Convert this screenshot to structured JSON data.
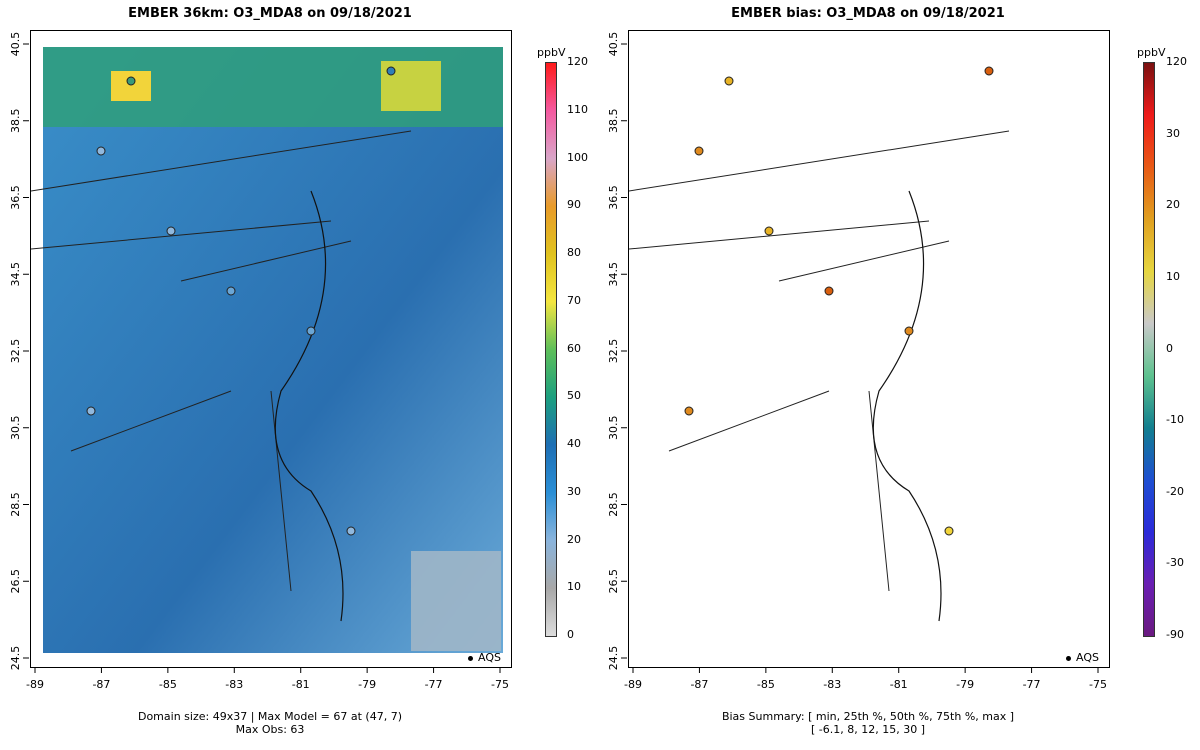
{
  "left_panel": {
    "title": "EMBER 36km: O3_MDA8 on 09/18/2021",
    "colorbar_unit": "ppbV",
    "colorbar_ticks": [
      "120",
      "110",
      "100",
      "90",
      "80",
      "70",
      "60",
      "50",
      "40",
      "30",
      "20",
      "10",
      "0"
    ],
    "legend_label": "AQS",
    "footer_line1": "Domain size: 49x37 | Max Model = 67 at (47, 7)",
    "footer_line2": "Max Obs: 63"
  },
  "right_panel": {
    "title": "EMBER bias: O3_MDA8 on 09/18/2021",
    "colorbar_unit": "ppbV",
    "colorbar_ticks": [
      "120",
      "30",
      "20",
      "10",
      "0",
      "-10",
      "-20",
      "-30",
      "-90"
    ],
    "legend_label": "AQS",
    "footer_line1": "Bias Summary: [ min, 25th %, 50th %, 75th %, max ]",
    "footer_line2": "[ -6.1,   8,   12,   15,   30 ]"
  },
  "axes": {
    "x_ticks": [
      "-89",
      "-87",
      "-85",
      "-83",
      "-81",
      "-79",
      "-77",
      "-75"
    ],
    "y_ticks": [
      "40.5",
      "38.5",
      "36.5",
      "34.5",
      "32.5",
      "30.5",
      "28.5",
      "26.5",
      "24.5"
    ]
  },
  "colors": {
    "map_low": "#c8c8c8",
    "map_mid": "#1f78b4",
    "map_high": "#f03b20",
    "bias_pos": "#e08a1e",
    "bias_neg": "#2c7bb6"
  }
}
